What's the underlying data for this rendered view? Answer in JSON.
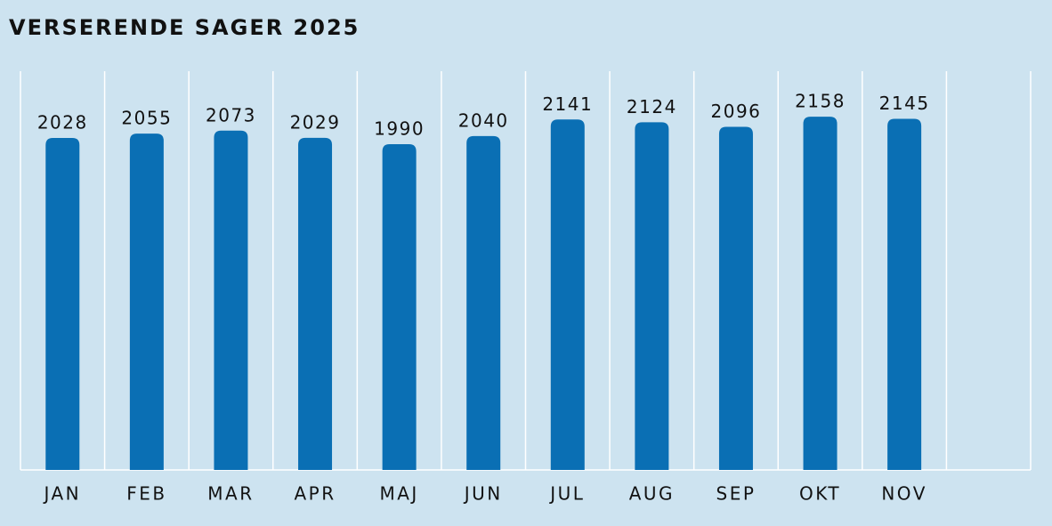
{
  "chart_data": {
    "type": "bar",
    "title": "VERSERENDE SAGER 2025",
    "categories": [
      "JAN",
      "FEB",
      "MAR",
      "APR",
      "MAJ",
      "JUN",
      "JUL",
      "AUG",
      "SEP",
      "OKT",
      "NOV",
      null
    ],
    "values": [
      2028,
      2055,
      2073,
      2029,
      1990,
      2040,
      2141,
      2124,
      2096,
      2158,
      2145,
      null
    ],
    "color": "#0a6fb4",
    "ylim": [
      0,
      2436
    ],
    "grid": true
  }
}
